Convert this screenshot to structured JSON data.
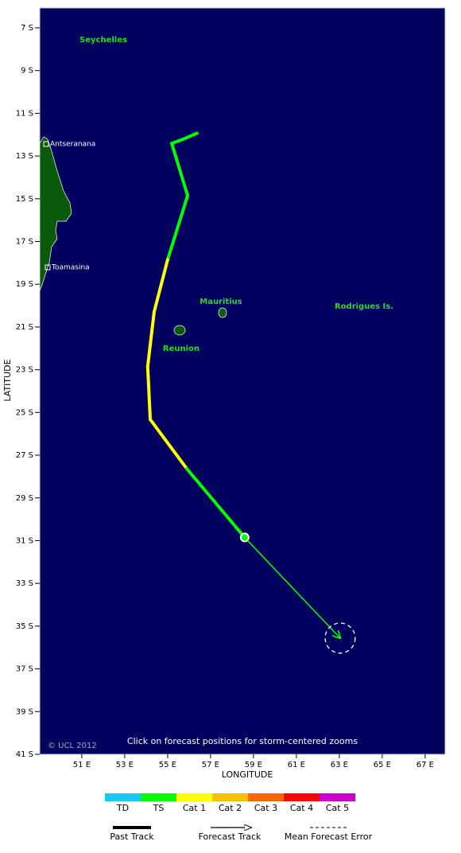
{
  "map": {
    "xlim": [
      49.04,
      67.93
    ],
    "ylim": [
      6.07,
      41
    ],
    "xticks": [
      {
        "value": 51,
        "label": "51 E"
      },
      {
        "value": 53,
        "label": "53 E"
      },
      {
        "value": 55,
        "label": "55 E"
      },
      {
        "value": 57,
        "label": "57 E"
      },
      {
        "value": 59,
        "label": "59 E"
      },
      {
        "value": 61,
        "label": "61 E"
      },
      {
        "value": 63,
        "label": "63 E"
      },
      {
        "value": 65,
        "label": "65 E"
      },
      {
        "value": 67,
        "label": "67 E"
      }
    ],
    "yticks": [
      {
        "value": 7,
        "label": "7 S"
      },
      {
        "value": 9,
        "label": "9 S"
      },
      {
        "value": 11,
        "label": "11 S"
      },
      {
        "value": 13,
        "label": "13 S"
      },
      {
        "value": 15,
        "label": "15 S"
      },
      {
        "value": 17,
        "label": "17 S"
      },
      {
        "value": 19,
        "label": "19 S"
      },
      {
        "value": 21,
        "label": "21 S"
      },
      {
        "value": 23,
        "label": "23 S"
      },
      {
        "value": 25,
        "label": "25 S"
      },
      {
        "value": 27,
        "label": "27 S"
      },
      {
        "value": 29,
        "label": "29 S"
      },
      {
        "value": 31,
        "label": "31 S"
      },
      {
        "value": 33,
        "label": "33 S"
      },
      {
        "value": 35,
        "label": "35 S"
      },
      {
        "value": 37,
        "label": "37 S"
      },
      {
        "value": 39,
        "label": "39 S"
      },
      {
        "value": 41,
        "label": "41 S"
      }
    ],
    "xlabel": "LONGITUDE",
    "ylabel": "LATITUDE",
    "places": [
      "Seychelles",
      "Antseranana",
      "Toamasina",
      "Mauritius",
      "Reunion",
      "Rodrigues Is."
    ],
    "copyright": "© UCL 2012",
    "note": "Click on forecast positions for storm-centered zooms",
    "past_track": {
      "points": [
        {
          "lon": 56.37,
          "lat": 11.93,
          "cat": 1
        },
        {
          "lon": 55.7,
          "lat": 12.22,
          "cat": 1
        },
        {
          "lon": 55.19,
          "lat": 12.41,
          "cat": 1
        },
        {
          "lon": 55.93,
          "lat": 14.85,
          "cat": 1
        },
        {
          "lon": 55.0,
          "lat": 17.85,
          "cat": 2
        },
        {
          "lon": 54.37,
          "lat": 20.3,
          "cat": 2
        },
        {
          "lon": 54.07,
          "lat": 22.85,
          "cat": 2
        },
        {
          "lon": 54.19,
          "lat": 25.33,
          "cat": 2
        },
        {
          "lon": 55.89,
          "lat": 27.63,
          "cat": 1
        },
        {
          "lon": 58.59,
          "lat": 30.85,
          "cat": 1
        }
      ]
    },
    "forecast": {
      "lon": 63.04,
      "lat": 35.56,
      "error_radius": 0.7,
      "color": "#00ff00"
    },
    "legend": {
      "categories": [
        {
          "label": "TD",
          "color": "#19c8f5"
        },
        {
          "label": "TS",
          "color": "#00ff00"
        },
        {
          "label": "Cat 1",
          "color": "#ffff00"
        },
        {
          "label": "Cat 2",
          "color": "#f5c000"
        },
        {
          "label": "Cat 3",
          "color": "#ff6600"
        },
        {
          "label": "Cat 4",
          "color": "#ff0000"
        },
        {
          "label": "Cat 5",
          "color": "#cc00cc"
        }
      ],
      "past_track": "Past Track",
      "forecast_track": "Forecast Track",
      "error": "Mean Forecast Error"
    }
  }
}
